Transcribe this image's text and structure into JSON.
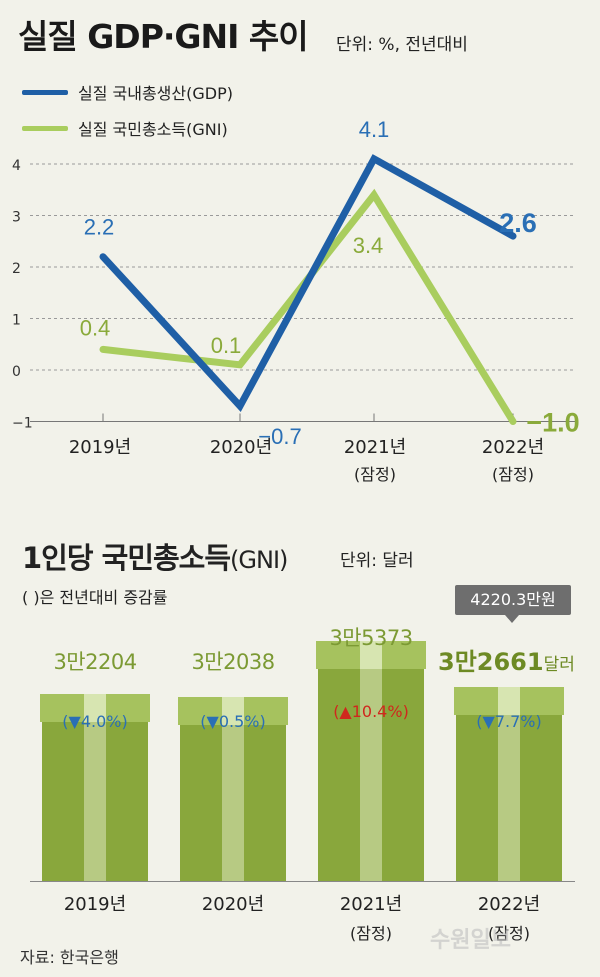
{
  "top": {
    "title": "실질 GDP·GNI 추이",
    "unit": "단위: %, 전년대비",
    "legend": [
      {
        "label": "실질 국내총생산(GDP)",
        "color": "#1f5fa6"
      },
      {
        "label": "실질 국민총소득(GNI)",
        "color": "#a9cd5e"
      }
    ]
  },
  "chart_data": [
    {
      "type": "line",
      "title": "실질 GDP·GNI 추이",
      "unit": "단위: %, 전년대비",
      "categories": [
        "2019년",
        "2020년",
        "2021년",
        "2022년"
      ],
      "category_sub": [
        "",
        "",
        "(잠정)",
        "(잠정)"
      ],
      "series": [
        {
          "name": "실질 국내총생산(GDP)",
          "values": [
            2.2,
            -0.7,
            4.1,
            2.6
          ],
          "labels": [
            "2.2",
            "−0.7",
            "4.1",
            "2.6"
          ],
          "color": "#1f5fa6"
        },
        {
          "name": "실질 국민총소득(GNI)",
          "values": [
            0.4,
            0.1,
            3.4,
            -1.0
          ],
          "labels": [
            "0.4",
            "0.1",
            "3.4",
            "−1.0"
          ],
          "color": "#a9cd5e"
        }
      ],
      "y_ticks": [
        4,
        3,
        2,
        1,
        0,
        -1
      ],
      "y_tick_labels": [
        "4",
        "3",
        "2",
        "1",
        "0",
        "−1"
      ],
      "ylim": [
        -1,
        4.5
      ],
      "grid": true
    },
    {
      "type": "bar",
      "title": "1인당 국민총소득(GNI)",
      "unit": "단위: 달러",
      "note": "( )은 전년대비 증감률",
      "categories": [
        "2019년",
        "2020년",
        "2021년",
        "2022년"
      ],
      "category_sub": [
        "",
        "",
        "(잠정)",
        "(잠정)"
      ],
      "values": [
        32204,
        32038,
        35373,
        32661
      ],
      "value_labels": [
        "3만2204",
        "3만2038",
        "3만5373",
        "3만2661"
      ],
      "value_unit_last": "달러",
      "changes": [
        "(▼4.0%)",
        "(▼0.5%)",
        "(▲10.4%)",
        "(▼7.7%)"
      ],
      "change_colors": [
        "#2a6fb5",
        "#2a6fb5",
        "#d0271d",
        "#2a6fb5"
      ],
      "badge": "4220.3만원"
    }
  ],
  "bottom": {
    "title_main": "1인당 국민총소득",
    "title_paren": "(GNI)",
    "unit": "단위: 달러",
    "note": "( )은 전년대비 증감률"
  },
  "source": "자료: 한국은행",
  "watermark": "수원일보"
}
